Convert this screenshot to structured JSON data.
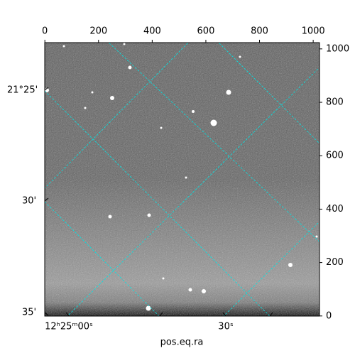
{
  "chart_data": {
    "type": "image",
    "xlabel": "pos.eq.ra",
    "xlim": [
      -0.5,
      1023.5
    ],
    "xticks": [
      0,
      200,
      400,
      600,
      800,
      1000
    ],
    "ylim": [
      -0.5,
      1023.5
    ],
    "yticks": [
      0,
      200,
      400,
      600,
      800,
      1000
    ],
    "dec_labels": [
      "21°25'",
      "30'",
      "35'"
    ],
    "ra_labels": [
      "12ʰ25ᵐ00ˢ",
      "30ˢ"
    ],
    "grid_color": "#00e5e5"
  }
}
